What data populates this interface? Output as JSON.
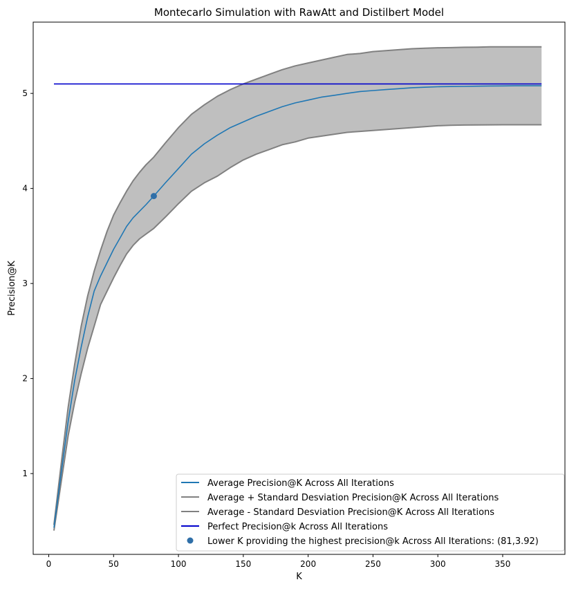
{
  "chart_data": {
    "type": "line",
    "title": "Montecarlo Simulation with RawAtt and Distilbert Model",
    "xlabel": "K",
    "ylabel": "Precision@K",
    "xlim": [
      -12,
      398
    ],
    "ylim": [
      0.15,
      5.75
    ],
    "xticks": [
      0,
      50,
      100,
      150,
      200,
      250,
      300,
      350
    ],
    "yticks": [
      1,
      2,
      3,
      4,
      5
    ],
    "grid": false,
    "legend_position": "lower-right",
    "fill_between": {
      "upper_series": 1,
      "lower_series": 2,
      "color": "#bfbfbf"
    },
    "series": [
      {
        "name": "Average Precision@K Across All Iterations",
        "color": "#1f77b4",
        "x": [
          4,
          10,
          15,
          20,
          25,
          30,
          35,
          40,
          45,
          50,
          55,
          60,
          65,
          70,
          75,
          81,
          90,
          100,
          110,
          120,
          130,
          140,
          150,
          160,
          170,
          180,
          190,
          200,
          210,
          220,
          230,
          240,
          250,
          260,
          270,
          280,
          290,
          300,
          310,
          320,
          330,
          340,
          350,
          360,
          370,
          380
        ],
        "y": [
          0.43,
          1.05,
          1.55,
          1.98,
          2.33,
          2.65,
          2.92,
          3.08,
          3.22,
          3.36,
          3.48,
          3.6,
          3.69,
          3.76,
          3.83,
          3.92,
          4.06,
          4.21,
          4.36,
          4.47,
          4.56,
          4.64,
          4.7,
          4.76,
          4.81,
          4.86,
          4.9,
          4.93,
          4.96,
          4.98,
          5.0,
          5.02,
          5.03,
          5.04,
          5.05,
          5.06,
          5.065,
          5.07,
          5.072,
          5.074,
          5.076,
          5.078,
          5.079,
          5.08,
          5.08,
          5.08
        ]
      },
      {
        "name": "Average + Standard Desviation Precision@K Across All Iterations",
        "color": "#808080",
        "x": [
          4,
          10,
          15,
          20,
          25,
          30,
          35,
          40,
          45,
          50,
          55,
          60,
          65,
          70,
          75,
          81,
          90,
          100,
          110,
          120,
          130,
          140,
          150,
          160,
          170,
          180,
          190,
          200,
          210,
          220,
          230,
          240,
          250,
          260,
          270,
          280,
          290,
          300,
          310,
          320,
          330,
          340,
          350,
          360,
          370,
          380
        ],
        "y": [
          0.46,
          1.15,
          1.7,
          2.15,
          2.55,
          2.87,
          3.13,
          3.35,
          3.55,
          3.72,
          3.85,
          3.97,
          4.08,
          4.17,
          4.25,
          4.33,
          4.48,
          4.64,
          4.78,
          4.88,
          4.97,
          5.04,
          5.1,
          5.15,
          5.2,
          5.25,
          5.29,
          5.32,
          5.35,
          5.38,
          5.41,
          5.42,
          5.44,
          5.45,
          5.46,
          5.47,
          5.475,
          5.48,
          5.482,
          5.485,
          5.487,
          5.49,
          5.49,
          5.49,
          5.49,
          5.49
        ]
      },
      {
        "name": "Average - Standard Desviation Precision@K Across All Iterations",
        "color": "#808080",
        "x": [
          4,
          10,
          15,
          20,
          25,
          30,
          35,
          40,
          45,
          50,
          55,
          60,
          65,
          70,
          75,
          81,
          90,
          100,
          110,
          120,
          130,
          140,
          150,
          160,
          170,
          180,
          190,
          200,
          210,
          220,
          230,
          240,
          250,
          260,
          270,
          280,
          290,
          300,
          310,
          320,
          330,
          340,
          350,
          360,
          370,
          380
        ],
        "y": [
          0.4,
          0.95,
          1.4,
          1.75,
          2.05,
          2.32,
          2.55,
          2.78,
          2.92,
          3.06,
          3.19,
          3.31,
          3.4,
          3.47,
          3.52,
          3.58,
          3.7,
          3.84,
          3.97,
          4.06,
          4.13,
          4.22,
          4.3,
          4.36,
          4.41,
          4.46,
          4.49,
          4.53,
          4.55,
          4.57,
          4.59,
          4.6,
          4.61,
          4.62,
          4.63,
          4.64,
          4.65,
          4.66,
          4.665,
          4.667,
          4.668,
          4.669,
          4.67,
          4.67,
          4.67,
          4.67
        ]
      },
      {
        "name": "Perfect Precision@k Across All Iterations",
        "color": "#0000cc",
        "x": [
          4,
          380
        ],
        "y": [
          5.1,
          5.1
        ]
      }
    ],
    "highlight_point": {
      "label": "Lower K providing the highest precision@k Across All Iterations: (81,3.92)",
      "x": 81,
      "y": 3.92,
      "color": "#2f6fa8"
    }
  }
}
